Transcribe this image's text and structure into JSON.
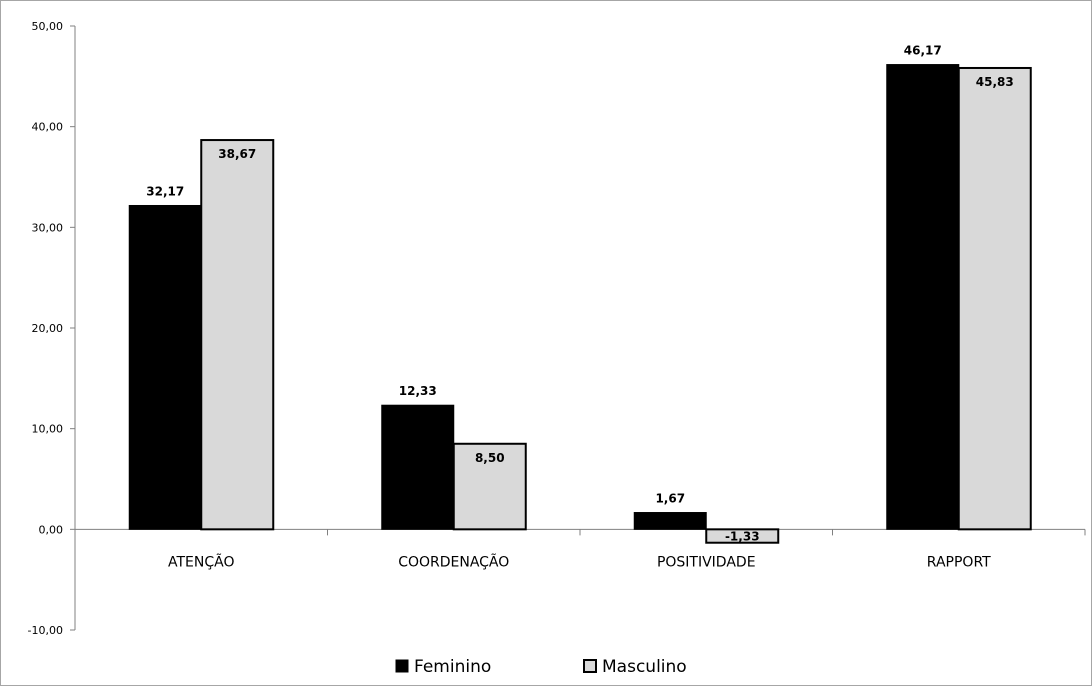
{
  "chart_data": {
    "type": "bar",
    "categories": [
      "ATENÇÃO",
      "COORDENAÇÃO",
      "POSITIVIDADE",
      "RAPPORT"
    ],
    "series": [
      {
        "name": "Feminino",
        "color": "#000000",
        "values": [
          32.17,
          12.33,
          1.67,
          46.17
        ],
        "labels": [
          "32,17",
          "12,33",
          "1,67",
          "46,17"
        ]
      },
      {
        "name": "Masculino",
        "color": "#d9d9d9",
        "values": [
          38.67,
          8.5,
          -1.33,
          45.83
        ],
        "labels": [
          "38,67",
          "8,50",
          "-1,33",
          "45,83"
        ]
      }
    ],
    "ylim": [
      -10,
      50
    ],
    "yticks": [
      -10,
      0,
      10,
      20,
      30,
      40,
      50
    ],
    "ytick_labels": [
      "-10,00",
      "0,00",
      "10,00",
      "20,00",
      "30,00",
      "40,00",
      "50,00"
    ],
    "grid": false,
    "legend_position": "bottom-center"
  }
}
